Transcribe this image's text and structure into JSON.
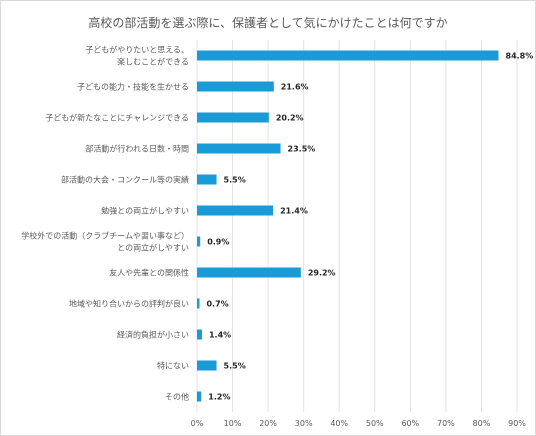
{
  "chart_data": {
    "type": "bar",
    "orientation": "horizontal",
    "title": "高校の部活動を選ぶ際に、保護者として気にかけたことは何ですか",
    "categories": [
      "子どもがやりたいと思える、\n楽しむことができる",
      "子どもの能力・技能を生かせる",
      "子どもが新たなことにチャレンジできる",
      "部活動が行われる日数・時間",
      "部活動の大会・コンクール等の実績",
      "勉強との両立がしやすい",
      "学校外での活動（クラブチームや習い事など）\nとの両立がしやすい",
      "友人や先輩との関係性",
      "地域や知り合いからの評判が良い",
      "経済的負担が小さい",
      "特にない",
      "その他"
    ],
    "values": [
      84.8,
      21.6,
      20.2,
      23.5,
      5.5,
      21.4,
      0.9,
      29.2,
      0.7,
      1.4,
      5.5,
      1.2
    ],
    "value_labels": [
      "84.8%",
      "21.6%",
      "20.2%",
      "23.5%",
      "5.5%",
      "21.4%",
      "0.9%",
      "29.2%",
      "0.7%",
      "1.4%",
      "5.5%",
      "1.2%"
    ],
    "xlim": [
      0,
      90
    ],
    "xticks": [
      "0%",
      "10%",
      "20%",
      "30%",
      "40%",
      "50%",
      "60%",
      "70%",
      "80%",
      "90%"
    ],
    "bar_color": "#1a9bd7",
    "grid": true
  }
}
